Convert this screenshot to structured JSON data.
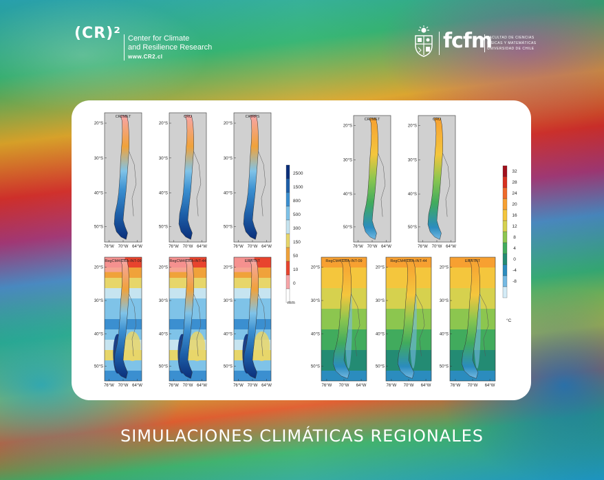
{
  "header": {
    "cr2_mark": "(CR)²",
    "cr2_line1": "Center for Climate",
    "cr2_line2": "and Resilience Research",
    "cr2_url": "www.CR2.cl",
    "fcfm_word": "fcfm",
    "fcfm_sub1": "FACULTAD DE CIENCIAS",
    "fcfm_sub2": "FÍSICAS Y MATEMÁTICAS",
    "fcfm_sub3": "UNIVERSIDAD DE CHILE"
  },
  "figure": {
    "precip_titles": [
      "CR2MET",
      "CRU",
      "CHIRPS",
      "RegCM4-ERA-INT-09",
      "RegCM4-ERA-INT-44",
      "ERA-INT"
    ],
    "temp_titles": [
      "CR2MET",
      "CRU",
      "RegCM4-ERA-INT-09",
      "RegCM4-ERA-INT-44",
      "ERA-INT"
    ],
    "lat_labels": [
      "20°S",
      "30°S",
      "40°S",
      "50°S"
    ],
    "lon_labels": [
      "76°W",
      "70°W",
      "64°W"
    ],
    "precip_scale": [
      "2500",
      "1500",
      "800",
      "500",
      "300",
      "150",
      "50",
      "10",
      "0"
    ],
    "precip_unit": "mm",
    "temp_scale": [
      "32",
      "28",
      "24",
      "20",
      "16",
      "12",
      "8",
      "4",
      "0",
      "-4",
      "-8"
    ],
    "temp_unit": "°C",
    "precip_colors": [
      "#0b2f7a",
      "#1d5fa8",
      "#3b8fd0",
      "#7fc3e8",
      "#c6e4f0",
      "#e7d66a",
      "#f0a23a",
      "#e8442e",
      "#f7a5a8",
      "#ffffff"
    ],
    "temp_colors": [
      "#a1101c",
      "#d7301f",
      "#ef6a2a",
      "#f7a031",
      "#f4c63d",
      "#d6d14e",
      "#8cc64f",
      "#41ab5d",
      "#238b73",
      "#2b8cbe",
      "#74b9e3",
      "#d4ecf7"
    ]
  },
  "title": "SIMULACIONES CLIMÁTICAS REGIONALES"
}
